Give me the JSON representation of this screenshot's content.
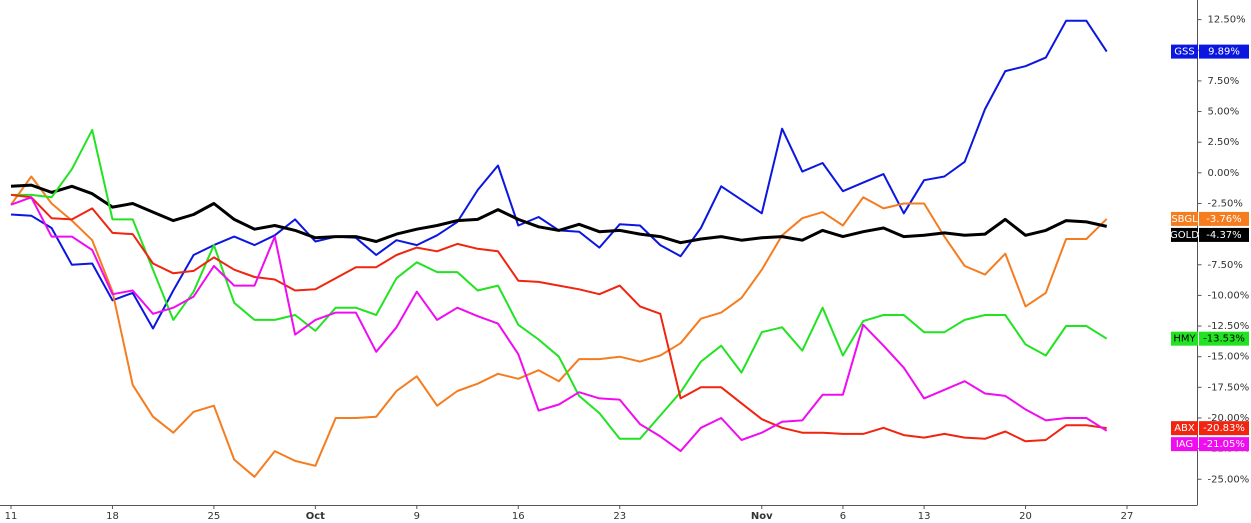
{
  "chart_data": {
    "type": "line",
    "categories": [
      "11",
      null,
      null,
      null,
      null,
      "18",
      null,
      null,
      null,
      null,
      "25",
      null,
      null,
      null,
      null,
      "Oct",
      null,
      null,
      null,
      null,
      "9",
      null,
      null,
      null,
      null,
      "16",
      null,
      null,
      null,
      null,
      "23",
      null,
      null,
      null,
      null,
      null,
      null,
      "Nov",
      null,
      null,
      null,
      "6",
      null,
      null,
      null,
      "13",
      null,
      null,
      null,
      null,
      "20",
      null,
      null,
      null,
      null,
      "27"
    ],
    "series": [
      {
        "name": "GSS",
        "color": "#0b16e0",
        "line_width": 2,
        "values": [
          -3.4,
          -3.5,
          -4.5,
          -7.5,
          -7.4,
          -10.4,
          -9.8,
          -12.7,
          -9.6,
          -6.7,
          -5.9,
          -5.2,
          -5.9,
          -5.1,
          -3.8,
          -5.6,
          -5.2,
          -5.3,
          -6.7,
          -5.5,
          -5.9,
          -5.1,
          -4.0,
          -1.4,
          0.6,
          -4.3,
          -3.6,
          -4.7,
          -4.8,
          -6.1,
          -4.2,
          -4.3,
          -5.9,
          -6.8,
          -4.5,
          -1.1,
          -2.2,
          -3.3,
          3.6,
          0.1,
          0.8,
          -1.5,
          -0.8,
          -0.1,
          -3.3,
          -0.6,
          -0.3,
          0.9,
          5.2,
          8.3,
          8.7,
          9.4,
          12.4,
          12.4,
          9.89,
          null
        ],
        "value_labels": [
          null,
          null,
          null,
          null,
          null,
          null,
          null,
          null,
          null,
          null,
          null,
          null,
          null,
          null,
          null,
          null,
          null,
          null,
          null,
          null,
          null,
          null,
          null,
          null,
          null,
          null,
          null,
          null,
          null,
          null,
          null,
          null,
          null,
          null,
          null,
          null,
          null,
          null,
          null,
          null,
          null,
          null,
          null,
          null,
          null,
          null,
          null,
          null,
          null,
          null,
          null,
          null,
          null,
          null,
          "9.89%",
          null
        ]
      },
      {
        "name": "SBGL",
        "color": "#f57c1f",
        "line_width": 2,
        "values": [
          -2.6,
          -0.3,
          -2.5,
          -3.9,
          -5.5,
          -9.7,
          -17.3,
          -19.9,
          -21.2,
          -19.5,
          -19.0,
          -23.4,
          -24.8,
          -22.7,
          -23.5,
          -23.9,
          -20.0,
          -20.0,
          -19.9,
          -17.8,
          -16.6,
          -19.0,
          -17.8,
          -17.2,
          -16.4,
          -16.8,
          -16.1,
          -17.0,
          -15.2,
          -15.2,
          -15.0,
          -15.4,
          -14.9,
          -13.9,
          -11.9,
          -11.4,
          -10.2,
          -7.9,
          -5.1,
          -3.7,
          -3.2,
          -4.3,
          -2.0,
          -2.9,
          -2.5,
          -2.5,
          -5.2,
          -7.6,
          -8.3,
          -6.6,
          -10.9,
          -9.8,
          -5.4,
          -5.4,
          -3.76,
          null
        ],
        "value_labels": [
          null,
          null,
          null,
          null,
          null,
          null,
          null,
          null,
          null,
          null,
          null,
          null,
          null,
          null,
          null,
          null,
          null,
          null,
          null,
          null,
          null,
          null,
          null,
          null,
          null,
          null,
          null,
          null,
          null,
          null,
          null,
          null,
          null,
          null,
          null,
          null,
          null,
          null,
          null,
          null,
          null,
          null,
          null,
          null,
          null,
          null,
          null,
          null,
          null,
          null,
          null,
          null,
          null,
          null,
          "-3.76%",
          null
        ]
      },
      {
        "name": "GOLD",
        "color": "#000000",
        "line_width": 3,
        "values": [
          -1.1,
          -1.0,
          -1.6,
          -1.1,
          -1.7,
          -2.8,
          -2.5,
          -3.2,
          -3.9,
          -3.4,
          -2.5,
          -3.8,
          -4.6,
          -4.3,
          -4.7,
          -5.3,
          -5.2,
          -5.2,
          -5.6,
          -5.0,
          -4.6,
          -4.3,
          -3.9,
          -3.8,
          -3.0,
          -3.8,
          -4.4,
          -4.7,
          -4.2,
          -4.8,
          -4.7,
          -5.0,
          -5.2,
          -5.7,
          -5.4,
          -5.2,
          -5.5,
          -5.3,
          -5.2,
          -5.5,
          -4.7,
          -5.2,
          -4.8,
          -4.5,
          -5.2,
          -5.1,
          -4.9,
          -5.1,
          -5.0,
          -3.8,
          -5.1,
          -4.7,
          -3.9,
          -4.0,
          -4.37,
          null
        ],
        "value_labels": [
          null,
          null,
          null,
          null,
          null,
          null,
          null,
          null,
          null,
          null,
          null,
          null,
          null,
          null,
          null,
          null,
          null,
          null,
          null,
          null,
          null,
          null,
          null,
          null,
          null,
          null,
          null,
          null,
          null,
          null,
          null,
          null,
          null,
          null,
          null,
          null,
          null,
          null,
          null,
          null,
          null,
          null,
          null,
          null,
          null,
          null,
          null,
          null,
          null,
          null,
          null,
          null,
          null,
          null,
          "-4.37%",
          null
        ]
      },
      {
        "name": "HMY",
        "color": "#22e322",
        "line_width": 2,
        "values": [
          -1.8,
          -1.8,
          -2.0,
          0.3,
          3.5,
          -3.8,
          -3.8,
          -7.9,
          -12.0,
          -9.7,
          -5.9,
          -10.6,
          -12.0,
          -12.0,
          -11.6,
          -12.9,
          -11.0,
          -11.0,
          -11.6,
          -8.6,
          -7.3,
          -8.1,
          -8.1,
          -9.6,
          -9.2,
          -12.4,
          -13.6,
          -15.0,
          -18.2,
          -19.6,
          -21.7,
          -21.7,
          -19.8,
          -17.9,
          -15.4,
          -14.1,
          -16.3,
          -13.0,
          -12.6,
          -14.5,
          -11.0,
          -14.9,
          -12.1,
          -11.6,
          -11.6,
          -13.0,
          -13.0,
          -12.0,
          -11.6,
          -11.6,
          -14.0,
          -14.9,
          -12.5,
          -12.5,
          -13.53,
          null
        ],
        "value_labels": [
          null,
          null,
          null,
          null,
          null,
          null,
          null,
          null,
          null,
          null,
          null,
          null,
          null,
          null,
          null,
          null,
          null,
          null,
          null,
          null,
          null,
          null,
          null,
          null,
          null,
          null,
          null,
          null,
          null,
          null,
          null,
          null,
          null,
          null,
          null,
          null,
          null,
          null,
          null,
          null,
          null,
          null,
          null,
          null,
          null,
          null,
          null,
          null,
          null,
          null,
          null,
          null,
          null,
          null,
          "-13.53%",
          null
        ]
      },
      {
        "name": "ABX",
        "color": "#f0240f",
        "line_width": 2,
        "values": [
          -1.8,
          -2.0,
          -3.7,
          -3.8,
          -2.9,
          -4.9,
          -5.0,
          -7.4,
          -8.2,
          -8.0,
          -6.9,
          -7.9,
          -8.5,
          -8.7,
          -9.6,
          -9.5,
          -8.6,
          -7.7,
          -7.7,
          -6.7,
          -6.1,
          -6.4,
          -5.8,
          -6.2,
          -6.4,
          -8.8,
          -8.9,
          -9.2,
          -9.5,
          -9.9,
          -9.2,
          -10.9,
          -11.5,
          -18.4,
          -17.5,
          -17.5,
          -18.8,
          -20.1,
          -20.8,
          -21.2,
          -21.2,
          -21.3,
          -21.3,
          -20.8,
          -21.4,
          -21.6,
          -21.3,
          -21.6,
          -21.7,
          -21.1,
          -21.9,
          -21.8,
          -20.6,
          -20.6,
          -20.83,
          null
        ],
        "value_labels": [
          null,
          null,
          null,
          null,
          null,
          null,
          null,
          null,
          null,
          null,
          null,
          null,
          null,
          null,
          null,
          null,
          null,
          null,
          null,
          null,
          null,
          null,
          null,
          null,
          null,
          null,
          null,
          null,
          null,
          null,
          null,
          null,
          null,
          null,
          null,
          null,
          null,
          null,
          null,
          null,
          null,
          null,
          null,
          null,
          null,
          null,
          null,
          null,
          null,
          null,
          null,
          null,
          null,
          null,
          "-20.83%",
          null
        ]
      },
      {
        "name": "IAG",
        "color": "#f00cf0",
        "line_width": 2,
        "values": [
          -2.6,
          -2.0,
          -5.2,
          -5.2,
          -6.3,
          -9.9,
          -9.6,
          -11.5,
          -11.0,
          -10.1,
          -7.6,
          -9.2,
          -9.2,
          -5.2,
          -13.2,
          -12.0,
          -11.4,
          -11.4,
          -14.6,
          -12.6,
          -9.7,
          -12.0,
          -11.0,
          -11.7,
          -12.3,
          -14.8,
          -19.4,
          -18.9,
          -17.9,
          -18.4,
          -18.5,
          -20.5,
          -21.5,
          -22.7,
          -20.8,
          -20.0,
          -21.8,
          -21.2,
          -20.3,
          -20.2,
          -18.1,
          -18.1,
          -12.4,
          -14.1,
          -15.9,
          -18.4,
          -17.7,
          -17.0,
          -18.0,
          -18.2,
          -19.3,
          -20.2,
          -20.0,
          -20.0,
          -21.05,
          null
        ],
        "value_labels": [
          null,
          null,
          null,
          null,
          null,
          null,
          null,
          null,
          null,
          null,
          null,
          null,
          null,
          null,
          null,
          null,
          null,
          null,
          null,
          null,
          null,
          null,
          null,
          null,
          null,
          null,
          null,
          null,
          null,
          null,
          null,
          null,
          null,
          null,
          null,
          null,
          null,
          null,
          null,
          null,
          null,
          null,
          null,
          null,
          null,
          null,
          null,
          null,
          null,
          null,
          null,
          null,
          null,
          null,
          "-21.05%",
          null
        ]
      }
    ],
    "ylim": [
      -27.1,
      14.1
    ],
    "yticks": [
      {
        "value": 12.5,
        "label": "12.50%"
      },
      {
        "value": 10,
        "label": "10.00%"
      },
      {
        "value": 7.5,
        "label": "7.50%"
      },
      {
        "value": 5,
        "label": "5.00%"
      },
      {
        "value": 2.5,
        "label": "2.50%"
      },
      {
        "value": 0,
        "label": "0.00%"
      },
      {
        "value": -2.5,
        "label": "-2.50%"
      },
      {
        "value": -5,
        "label": "-5.00%"
      },
      {
        "value": -7.5,
        "label": "-7.50%"
      },
      {
        "value": -10,
        "label": "-10.00%"
      },
      {
        "value": -12.5,
        "label": "-12.50%"
      },
      {
        "value": -15,
        "label": "-15.00%"
      },
      {
        "value": -17.5,
        "label": "-17.50%"
      },
      {
        "value": -20,
        "label": "-20.00%"
      },
      {
        "value": -22.5,
        "label": "-22.50%"
      },
      {
        "value": -25,
        "label": "-25.00%"
      }
    ],
    "y_axis_side": "right",
    "grid": false
  }
}
